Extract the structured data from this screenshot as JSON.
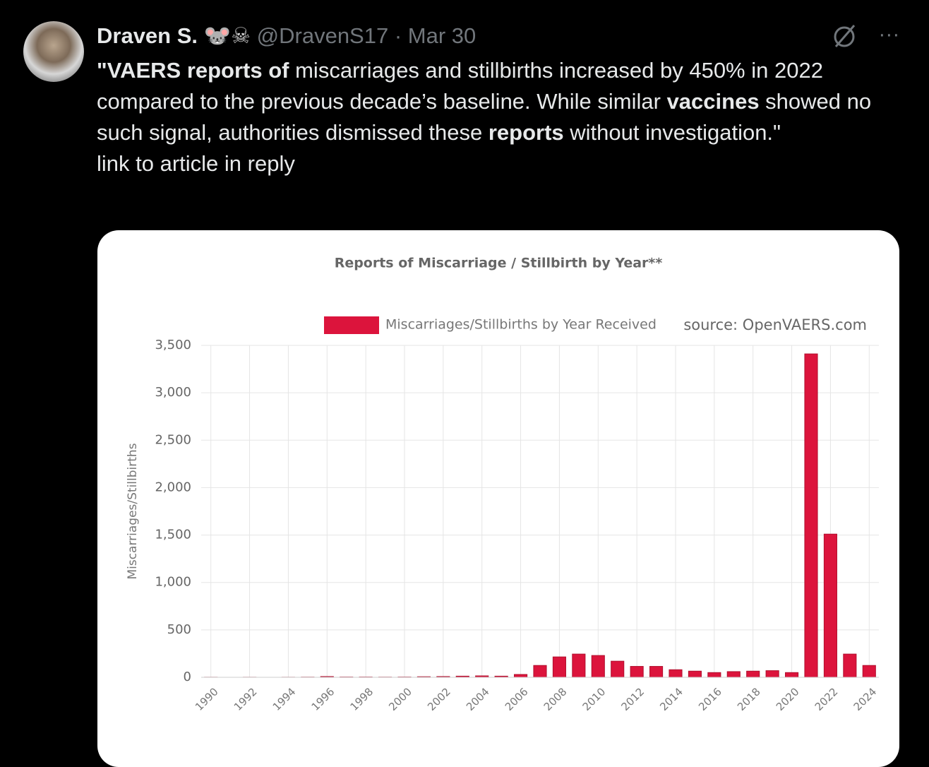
{
  "tweet": {
    "name": "Draven S.",
    "emoji": "🐭☠",
    "handle": "@DravenS17",
    "date": "· Mar 30",
    "text": [
      {
        "text": "\"VAERS reports of",
        "bold": true
      },
      {
        "text": " miscarriages and stillbirths increased by 450% in 2022 compared to the previous decade’s baseline. While similar ",
        "bold": false
      },
      {
        "text": "vaccines",
        "bold": true
      },
      {
        "text": " showed no such signal, authorities dismissed these ",
        "bold": false
      },
      {
        "text": "reports",
        "bold": true
      },
      {
        "text": " without investigation.\"",
        "bold": false
      }
    ],
    "note": "link to article in reply",
    "more": "···"
  },
  "chart_data": {
    "type": "bar",
    "title": "Reports of Miscarriage / Stillbirth by Year**",
    "source": "source: OpenVAERS.com",
    "ylabel": "Miscarriages/Stillbirths",
    "categories": [
      "1990",
      null,
      "1992",
      null,
      "1994",
      null,
      "1996",
      null,
      "1998",
      null,
      "2000",
      null,
      "2002",
      null,
      "2004",
      null,
      "2006",
      null,
      "2008",
      null,
      "2010",
      null,
      "2012",
      null,
      "2014",
      null,
      "2016",
      null,
      "2018",
      null,
      "2020",
      null,
      "2022",
      null,
      "2024"
    ],
    "series": [
      {
        "name": "Miscarriages/Stillbirths by Year Received",
        "color": "#dc143c",
        "values": [
          1,
          0,
          1,
          0,
          1,
          2,
          8,
          3,
          3,
          2,
          3,
          6,
          8,
          12,
          15,
          12,
          30,
          125,
          215,
          245,
          230,
          170,
          115,
          115,
          80,
          65,
          50,
          60,
          65,
          70,
          50,
          3410,
          1510,
          245,
          125
        ]
      }
    ],
    "ylim": [
      0,
      3500
    ],
    "yticks": [
      0,
      500,
      {
        "value": 1000,
        "label": "1,000"
      },
      {
        "value": 1500,
        "label": "1,500"
      },
      {
        "value": 2000,
        "label": "2,000"
      },
      {
        "value": 2500,
        "label": "2,500"
      },
      {
        "value": 3000,
        "label": "3,000"
      },
      {
        "value": 3500,
        "label": "3,500"
      }
    ],
    "grid": true
  }
}
